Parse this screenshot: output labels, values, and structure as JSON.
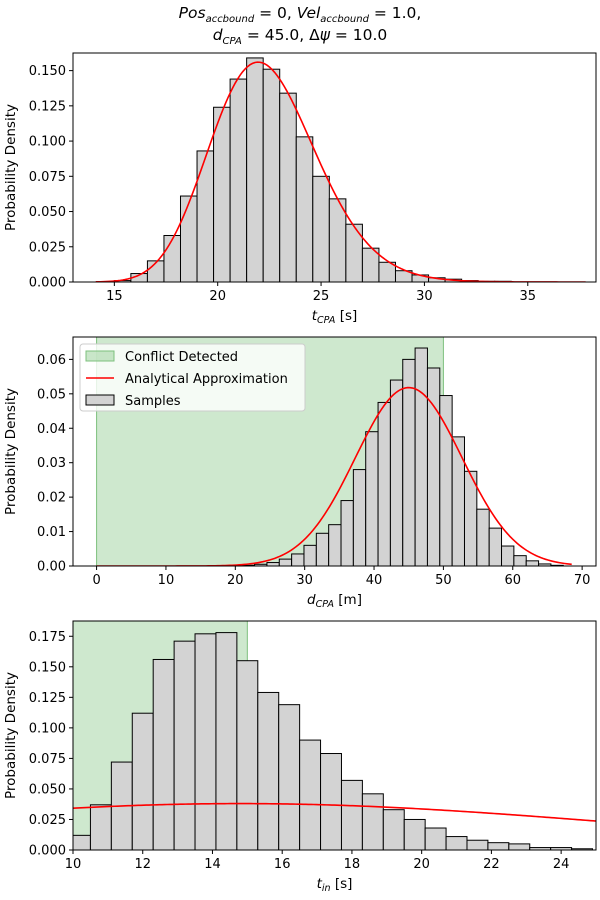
{
  "figure": {
    "title_line1": "Pos_accbound = 0, Vel_accbound = 1.0,",
    "title_line2": "d_CPA = 45.0, Δψ = 10.0"
  },
  "colors": {
    "bar_fill": "#d3d3d3",
    "bar_edge": "#000000",
    "curve": "#ff0000",
    "conflict_fill": "#a5d6a5"
  },
  "chart_data": [
    {
      "type": "bar",
      "id": "tcpa",
      "xlabel_main": "t",
      "xlabel_sub": "CPA",
      "xlabel_unit": "[s]",
      "ylabel": "Probability Density",
      "xlim": [
        13.0,
        38.3
      ],
      "ylim": [
        0,
        0.1625
      ],
      "xticks": [
        15,
        20,
        25,
        30,
        35
      ],
      "yticks": [
        0.0,
        0.025,
        0.05,
        0.075,
        0.1,
        0.125,
        0.15
      ],
      "ytick_labels": [
        "0.000",
        "0.025",
        "0.050",
        "0.075",
        "0.100",
        "0.125",
        "0.150"
      ],
      "bin_start": 15.0,
      "bin_width": 0.8,
      "values": [
        0.001,
        0.006,
        0.015,
        0.033,
        0.061,
        0.093,
        0.124,
        0.144,
        0.159,
        0.151,
        0.134,
        0.103,
        0.075,
        0.059,
        0.041,
        0.024,
        0.014,
        0.008,
        0.005,
        0.003,
        0.002,
        0.001,
        0.0005,
        0.0005
      ],
      "curve": {
        "kind": "lognormal",
        "mean": 22.4,
        "sd": 2.6,
        "shift": 0,
        "x0": 14.1,
        "x1": 37.8
      },
      "conflict": null,
      "legend": null
    },
    {
      "type": "bar",
      "id": "dcpa",
      "xlabel_main": "d",
      "xlabel_sub": "CPA",
      "xlabel_unit": "[m]",
      "ylabel": "Probability Density",
      "xlim": [
        -3.4,
        72.0
      ],
      "ylim": [
        0,
        0.0665
      ],
      "xticks": [
        0,
        10,
        20,
        30,
        40,
        50,
        60,
        70
      ],
      "yticks": [
        0.0,
        0.01,
        0.02,
        0.03,
        0.04,
        0.05,
        0.06
      ],
      "ytick_labels": [
        "0.00",
        "0.01",
        "0.02",
        "0.03",
        "0.04",
        "0.05",
        "0.06"
      ],
      "bin_start": 21.0,
      "bin_width": 1.78,
      "values": [
        0.0002,
        0.0005,
        0.001,
        0.002,
        0.0035,
        0.006,
        0.0095,
        0.012,
        0.019,
        0.028,
        0.039,
        0.0475,
        0.054,
        0.06,
        0.0633,
        0.0575,
        0.0495,
        0.0375,
        0.0275,
        0.0165,
        0.011,
        0.0058,
        0.003,
        0.0015,
        0.0006,
        0.0002
      ],
      "curve": {
        "kind": "normal",
        "mean": 45.0,
        "sd": 7.7,
        "x0": 0,
        "x1": 68.5
      },
      "conflict": {
        "x0": 0,
        "x1": 50
      },
      "legend": {
        "conflict_label": "Conflict Detected",
        "curve_label": "Analytical Approximation",
        "bar_label": "Samples"
      }
    },
    {
      "type": "bar",
      "id": "tin",
      "xlabel_main": "t",
      "xlabel_sub": "in",
      "xlabel_unit": "[s]",
      "ylabel": "Probability Density",
      "xlim": [
        10,
        25
      ],
      "ylim": [
        0,
        0.1875
      ],
      "xticks": [
        10,
        12,
        14,
        16,
        18,
        20,
        22,
        24
      ],
      "yticks": [
        0.0,
        0.025,
        0.05,
        0.075,
        0.1,
        0.125,
        0.15,
        0.175
      ],
      "ytick_labels": [
        "0.000",
        "0.025",
        "0.050",
        "0.075",
        "0.100",
        "0.125",
        "0.150",
        "0.175"
      ],
      "bin_start": 9.9,
      "bin_width": 0.6,
      "values": [
        0.012,
        0.037,
        0.072,
        0.112,
        0.156,
        0.171,
        0.177,
        0.178,
        0.155,
        0.129,
        0.119,
        0.09,
        0.079,
        0.057,
        0.046,
        0.033,
        0.025,
        0.018,
        0.011,
        0.008,
        0.006,
        0.005,
        0.002,
        0.002,
        0.001
      ],
      "curve": {
        "kind": "normal",
        "mean": 14.8,
        "sd": 10.5,
        "x0": 10,
        "x1": 25
      },
      "conflict": {
        "x0": 10,
        "x1": 15
      },
      "legend": null
    }
  ]
}
